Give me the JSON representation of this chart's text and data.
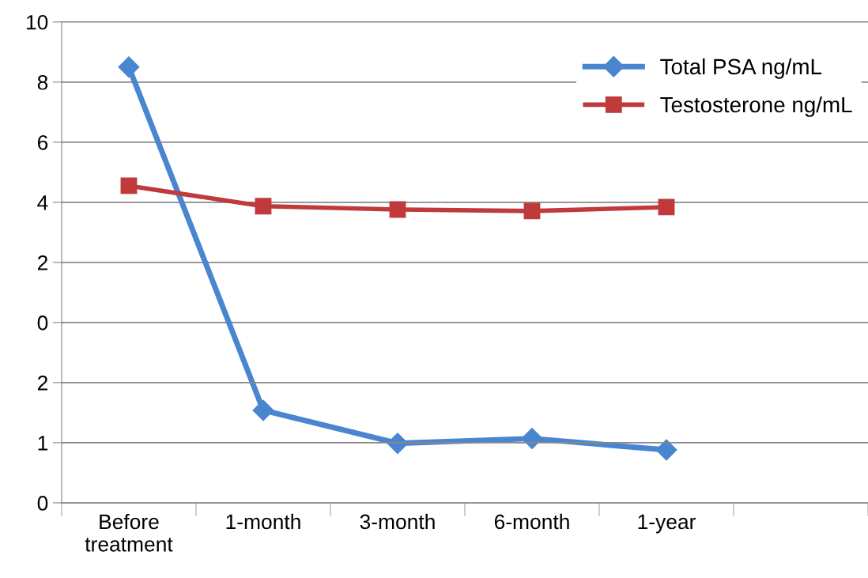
{
  "chart_data": [
    {
      "type": "line",
      "categories": [
        null,
        null,
        null,
        null,
        null,
        null
      ],
      "series": [
        {
          "name": "Total PSA ng/mL",
          "color": "#4a86d0",
          "marker": "diamond",
          "values": [
            8.5,
            null,
            null,
            null,
            null,
            null
          ]
        },
        {
          "name": "Testosterone ng/mL",
          "color": "#c0393b",
          "marker": "square",
          "values": [
            4.55,
            3.87,
            3.76,
            3.71,
            3.84,
            null
          ]
        }
      ],
      "ylim": [
        0,
        10
      ],
      "yticks": [
        0,
        2,
        4,
        6,
        8,
        10
      ],
      "tick_labels": "y",
      "grid": "y",
      "legend": "top right",
      "line_style": "solid"
    },
    {
      "type": "line",
      "categories": [
        "Before\ntreatment",
        "1-month",
        "3-month",
        "6-month",
        "1-year",
        null
      ],
      "series": [
        {
          "name": "Total PSA ng/mL",
          "color": "#4a86d0",
          "marker": "diamond",
          "values": [
            null,
            1.54,
            0.99,
            1.07,
            0.88,
            null
          ]
        }
      ],
      "ylim": [
        0,
        3
      ],
      "yticks": [
        0,
        1,
        2
      ],
      "grid": "y",
      "line_style": "solid"
    }
  ]
}
